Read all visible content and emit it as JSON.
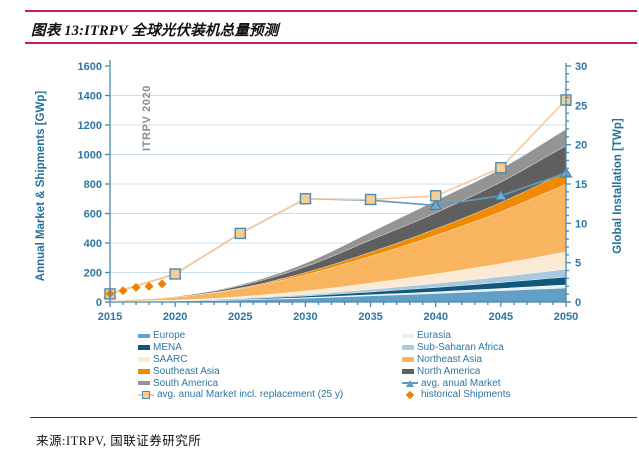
{
  "figure": {
    "title": "图表 13:ITRPV 全球光伏装机总量预测",
    "source": "来源:ITRPV, 国联证券研究所",
    "accent_color": "#C0214E"
  },
  "chart_data": {
    "type": "area",
    "subtype": "stacked-area with overlay lines, dual axis",
    "watermark": "ITRPV 2020",
    "grid": "horizontal only",
    "years": [
      2015,
      2020,
      2025,
      2030,
      2035,
      2040,
      2045,
      2050
    ],
    "x_axis": {
      "ticks": [
        2015,
        2020,
        2025,
        2030,
        2035,
        2040,
        2045,
        2050
      ],
      "minor_step_years": 1
    },
    "left_axis": {
      "label": "Annual Market  & Shipments [GWp]",
      "range": [
        0,
        1600
      ],
      "ticks": [
        0,
        200,
        400,
        600,
        800,
        1000,
        1200,
        1400,
        1600
      ]
    },
    "right_axis": {
      "label": "Global Installation [TWp]",
      "range": [
        0,
        30
      ],
      "ticks": [
        0,
        5,
        10,
        15,
        20,
        25,
        30
      ],
      "minor_step": 1
    },
    "series_stacked": [
      {
        "name": "Europe",
        "color": "#619FC6",
        "unit": "TWp",
        "values": [
          0.1,
          0.15,
          0.28,
          0.5,
          0.8,
          1.1,
          1.45,
          1.8
        ]
      },
      {
        "name": "Eurasia",
        "color": "#E7F0F7",
        "unit": "TWp",
        "values": [
          0.01,
          0.02,
          0.05,
          0.09,
          0.15,
          0.22,
          0.3,
          0.4
        ]
      },
      {
        "name": "MENA",
        "color": "#10597A",
        "unit": "TWp",
        "values": [
          0.01,
          0.03,
          0.09,
          0.2,
          0.35,
          0.55,
          0.75,
          1.0
        ]
      },
      {
        "name": "Sub-Saharan Africa",
        "color": "#A8C9E0",
        "unit": "TWp",
        "values": [
          0.01,
          0.02,
          0.08,
          0.18,
          0.33,
          0.52,
          0.74,
          1.0
        ]
      },
      {
        "name": "SAARC",
        "color": "#FBEBD4",
        "unit": "TWp",
        "values": [
          0.01,
          0.05,
          0.2,
          0.46,
          0.8,
          1.2,
          1.65,
          2.2
        ]
      },
      {
        "name": "Northeast Asia",
        "color": "#F8B45F",
        "unit": "TWp",
        "values": [
          0.08,
          0.36,
          1.0,
          2.05,
          3.4,
          4.9,
          6.6,
          8.6
        ]
      },
      {
        "name": "Southeast Asia",
        "color": "#F08A00",
        "unit": "TWp",
        "values": [
          0.0,
          0.02,
          0.11,
          0.28,
          0.52,
          0.82,
          1.18,
          1.6
        ]
      },
      {
        "name": "North America",
        "color": "#5F5F5F",
        "unit": "TWp",
        "values": [
          0.03,
          0.07,
          0.27,
          0.75,
          1.55,
          2.05,
          2.6,
          3.3
        ]
      },
      {
        "name": "South America",
        "color": "#949494",
        "unit": "TWp",
        "values": [
          0.0,
          0.02,
          0.14,
          0.45,
          1.0,
          1.55,
          1.7,
          2.1
        ]
      }
    ],
    "series_lines": [
      {
        "name": "avg. anual Market",
        "axis": "left",
        "unit": "GWp",
        "color": "#5B9BC4",
        "marker": "triangle",
        "marker_fill": "#74A9CB",
        "marker_stroke": "#3E7E9E",
        "values": [
          55,
          190,
          465,
          700,
          690,
          655,
          720,
          875
        ]
      },
      {
        "name": "avg. anual Market incl. replacement (25 y)",
        "axis": "left",
        "unit": "GWp",
        "color": "#F8C998",
        "marker": "square",
        "marker_fill": "#F7CD96",
        "marker_stroke": "#4E8AB0",
        "values": [
          55,
          190,
          465,
          700,
          695,
          720,
          910,
          1370
        ]
      }
    ],
    "series_points": [
      {
        "name": "historical Shipments",
        "axis": "left",
        "unit": "GWp",
        "color": "#F08000",
        "marker": "diamond",
        "x": [
          2015,
          2016,
          2017,
          2018,
          2019
        ],
        "values": [
          57,
          76,
          99,
          106,
          123
        ]
      }
    ],
    "colors": {
      "grid": "#CBDFEE",
      "axis_line": "#4B88AE",
      "tick_text": "#2E76A2",
      "axis_title_text": "#25719A",
      "watermark_text": "#8C8C8C"
    }
  },
  "legend": {
    "col1": [
      {
        "label": "Europe",
        "swatch": "area",
        "color": "#619FC6"
      },
      {
        "label": "MENA",
        "swatch": "area",
        "color": "#10597A"
      },
      {
        "label": "SAARC",
        "swatch": "area",
        "color": "#FBEBD4"
      },
      {
        "label": "Southeast Asia",
        "swatch": "area",
        "color": "#F08A00"
      },
      {
        "label": "South America",
        "swatch": "area",
        "color": "#949494"
      },
      {
        "label": "avg. anual Market incl. replacement (25 y)",
        "swatch": "line-square",
        "color": "#F8C998",
        "fill": "#F7CD96",
        "stroke": "#4E8AB0"
      }
    ],
    "col2": [
      {
        "label": "Eurasia",
        "swatch": "area",
        "color": "#E7F0F7"
      },
      {
        "label": "Sub-Saharan Africa",
        "swatch": "area",
        "color": "#A8C9E0"
      },
      {
        "label": "Northeast Asia",
        "swatch": "area",
        "color": "#F8B45F"
      },
      {
        "label": "North America",
        "swatch": "area",
        "color": "#5F5F5F"
      },
      {
        "label": "avg. anual Market",
        "swatch": "line-triangle",
        "color": "#5B9BC4"
      },
      {
        "label": "historical Shipments",
        "swatch": "diamond",
        "color": "#F08000"
      }
    ]
  }
}
